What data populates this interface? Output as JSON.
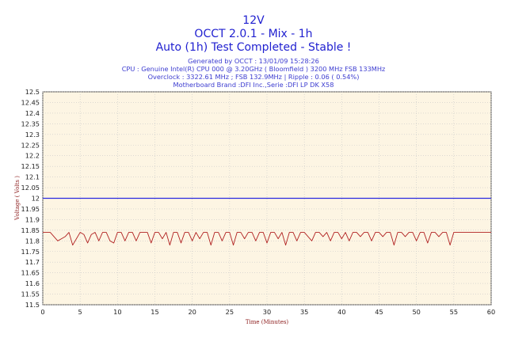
{
  "chart_data": {
    "type": "line",
    "title": "12V",
    "subtitle": "OCCT 2.0.1 - Mix - 1h",
    "status": "Auto (1h) Test Completed - Stable !",
    "info_lines": [
      "Generated by OCCT : 13/01/09 15:28:26",
      "CPU : Genuine Intel(R) CPU 000 @ 3.20GHz ( Bloomfield ) 3200 MHz FSB 133MHz",
      "Overclock : 3322.61 MHz ; FSB 132.9MHz | Ripple : 0.06 ( 0.54%)",
      "Motherboard Brand :DFI Inc.,Serie :DFI LP DK X58"
    ],
    "xlabel": "Time (Minutes)",
    "ylabel": "Voltage ( Volts )",
    "xlim": [
      0,
      60
    ],
    "ylim": [
      11.5,
      12.5
    ],
    "x_ticks": [
      "0",
      "5",
      "10",
      "15",
      "20",
      "25",
      "30",
      "35",
      "40",
      "45",
      "50",
      "55",
      "60"
    ],
    "y_ticks": [
      "12.5",
      "12.45",
      "12.4",
      "12.35",
      "12.3",
      "12.25",
      "12.2",
      "12.15",
      "12.1",
      "12.05",
      "12",
      "11.95",
      "11.9",
      "11.85",
      "11.8",
      "11.75",
      "11.7",
      "11.65",
      "11.6",
      "11.55",
      "11.5"
    ],
    "grid": true,
    "colors": {
      "plot_background": "#fdf5e3",
      "grid": "#c8c8c8",
      "reference_line": "#2a2ae0",
      "series": "#b02020",
      "title": "#1f1fd0",
      "info": "#3c3cd0",
      "axis_label": "#8b1a1a"
    },
    "reference_line": {
      "y": 12.0
    },
    "series": [
      {
        "x": [
          0,
          0.5,
          1,
          1.5,
          2,
          2.5,
          3,
          3.5,
          4,
          4.5,
          5,
          5.5,
          6,
          6.5,
          7,
          7.5,
          8,
          8.5,
          9,
          9.5,
          10,
          10.5,
          11,
          11.5,
          12,
          12.5,
          13,
          13.5,
          14,
          14.5,
          15,
          15.5,
          16,
          16.5,
          17,
          17.5,
          18,
          18.5,
          19,
          19.5,
          20,
          20.5,
          21,
          21.5,
          22,
          22.5,
          23,
          23.5,
          24,
          24.5,
          25,
          25.5,
          26,
          26.5,
          27,
          27.5,
          28,
          28.5,
          29,
          29.5,
          30,
          30.5,
          31,
          31.5,
          32,
          32.5,
          33,
          33.5,
          34,
          34.5,
          35,
          35.5,
          36,
          36.5,
          37,
          37.5,
          38,
          38.5,
          39,
          39.5,
          40,
          40.5,
          41,
          41.5,
          42,
          42.5,
          43,
          43.5,
          44,
          44.5,
          45,
          45.5,
          46,
          46.5,
          47,
          47.5,
          48,
          48.5,
          49,
          49.5,
          50,
          50.5,
          51,
          51.5,
          52,
          52.5,
          53,
          53.5,
          54,
          54.5,
          55,
          55.5,
          56,
          56.5,
          57,
          57.5,
          58,
          58.5,
          59,
          59.5,
          60
        ],
        "y": [
          11.84,
          11.84,
          11.84,
          11.82,
          11.8,
          11.81,
          11.82,
          11.84,
          11.78,
          11.81,
          11.84,
          11.83,
          11.79,
          11.83,
          11.84,
          11.8,
          11.84,
          11.84,
          11.8,
          11.79,
          11.84,
          11.84,
          11.8,
          11.84,
          11.84,
          11.8,
          11.84,
          11.84,
          11.84,
          11.79,
          11.84,
          11.84,
          11.81,
          11.84,
          11.78,
          11.84,
          11.84,
          11.79,
          11.84,
          11.84,
          11.8,
          11.84,
          11.81,
          11.84,
          11.84,
          11.78,
          11.84,
          11.84,
          11.8,
          11.84,
          11.84,
          11.78,
          11.84,
          11.84,
          11.81,
          11.84,
          11.84,
          11.8,
          11.84,
          11.84,
          11.79,
          11.84,
          11.84,
          11.81,
          11.84,
          11.78,
          11.84,
          11.84,
          11.8,
          11.84,
          11.84,
          11.82,
          11.8,
          11.84,
          11.84,
          11.82,
          11.84,
          11.8,
          11.84,
          11.84,
          11.81,
          11.84,
          11.8,
          11.84,
          11.84,
          11.82,
          11.84,
          11.84,
          11.8,
          11.84,
          11.84,
          11.82,
          11.84,
          11.84,
          11.78,
          11.84,
          11.84,
          11.82,
          11.84,
          11.84,
          11.8,
          11.84,
          11.84,
          11.79,
          11.84,
          11.84,
          11.82,
          11.84,
          11.84,
          11.78,
          11.84,
          11.84,
          11.84,
          11.84,
          11.84,
          11.84,
          11.84,
          11.84,
          11.84,
          11.84,
          11.84
        ]
      }
    ]
  }
}
